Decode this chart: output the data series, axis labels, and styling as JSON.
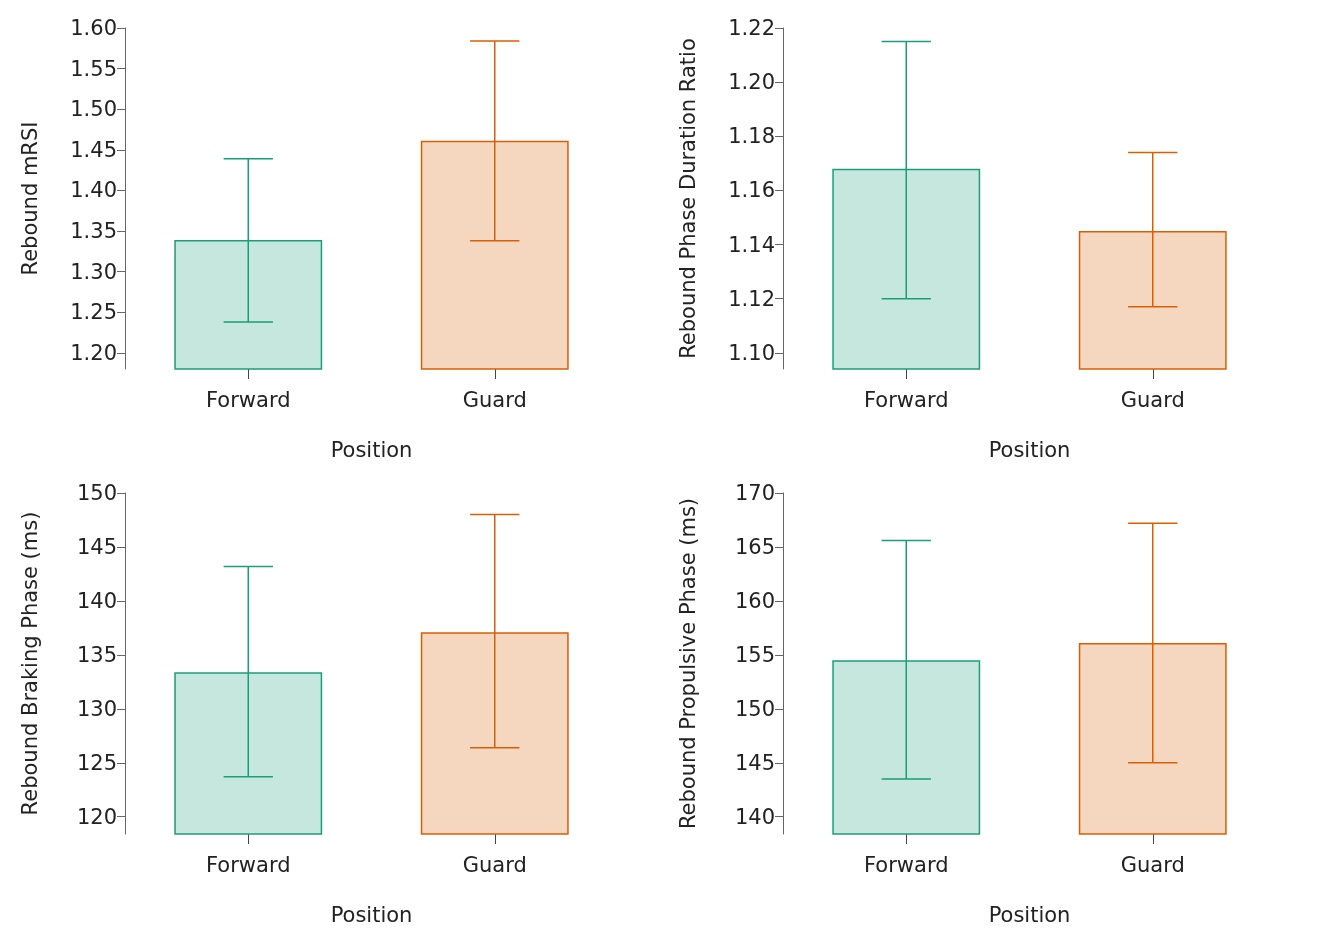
{
  "chart_data": [
    {
      "type": "bar",
      "xlabel": "Position",
      "ylabel": "Rebound mRSI",
      "categories": [
        "Forward",
        "Guard"
      ],
      "values": [
        1.339,
        1.461
      ],
      "colors": [
        "#1b9e77",
        "#d95f02"
      ],
      "errors": [
        [
          1.238,
          1.439
        ],
        [
          1.338,
          1.584
        ]
      ],
      "ylim": [
        1.18,
        1.6
      ],
      "yticks": [
        {
          "value": 1.2,
          "label": "1.20"
        },
        {
          "value": 1.25,
          "label": "1.25"
        },
        {
          "value": 1.3,
          "label": "1.30"
        },
        {
          "value": 1.35,
          "label": "1.35"
        },
        {
          "value": 1.4,
          "label": "1.40"
        },
        {
          "value": 1.45,
          "label": "1.45"
        },
        {
          "value": 1.5,
          "label": "1.50"
        },
        {
          "value": 1.55,
          "label": "1.55"
        },
        {
          "value": 1.6,
          "label": "1.60"
        }
      ],
      "grid": false
    },
    {
      "type": "bar",
      "xlabel": "Position",
      "ylabel": "Rebound Phase Duration Ratio",
      "categories": [
        "Forward",
        "Guard"
      ],
      "values": [
        1.168,
        1.145
      ],
      "colors": [
        "#1b9e77",
        "#d95f02"
      ],
      "errors": [
        [
          1.12,
          1.215
        ],
        [
          1.117,
          1.174
        ]
      ],
      "ylim": [
        1.094,
        1.22
      ],
      "yticks": [
        {
          "value": 1.1,
          "label": "1.10"
        },
        {
          "value": 1.12,
          "label": "1.12"
        },
        {
          "value": 1.14,
          "label": "1.14"
        },
        {
          "value": 1.16,
          "label": "1.16"
        },
        {
          "value": 1.18,
          "label": "1.18"
        },
        {
          "value": 1.2,
          "label": "1.20"
        },
        {
          "value": 1.22,
          "label": "1.22"
        }
      ],
      "grid": false
    },
    {
      "type": "bar",
      "xlabel": "Position",
      "ylabel": "Rebound Braking Phase (ms)",
      "categories": [
        "Forward",
        "Guard"
      ],
      "values": [
        133.4,
        137.1
      ],
      "colors": [
        "#1b9e77",
        "#d95f02"
      ],
      "errors": [
        [
          123.7,
          143.2
        ],
        [
          126.4,
          148.0
        ]
      ],
      "ylim": [
        118.4,
        150
      ],
      "yticks": [
        120,
        125,
        130,
        135,
        140,
        145,
        150
      ],
      "grid": false
    },
    {
      "type": "bar",
      "xlabel": "Position",
      "ylabel": "Rebound Propulsive Phase (ms)",
      "categories": [
        "Forward",
        "Guard"
      ],
      "values": [
        154.5,
        156.1
      ],
      "colors": [
        "#1b9e77",
        "#d95f02"
      ],
      "errors": [
        [
          143.5,
          165.6
        ],
        [
          145.0,
          167.2
        ]
      ],
      "ylim": [
        138.4,
        170
      ],
      "yticks": [
        140,
        145,
        150,
        155,
        160,
        165,
        170
      ],
      "grid": false
    }
  ]
}
